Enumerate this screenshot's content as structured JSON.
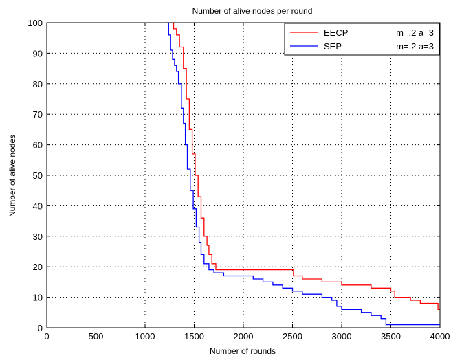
{
  "chart_data": {
    "type": "line",
    "title": "Number of alive nodes per round",
    "xlabel": "Number of rounds",
    "ylabel": "Number of alive nodes",
    "xlim": [
      0,
      4000
    ],
    "ylim": [
      0,
      100
    ],
    "xticks": [
      0,
      500,
      1000,
      1500,
      2000,
      2500,
      3000,
      3500,
      4000
    ],
    "yticks": [
      0,
      10,
      20,
      30,
      40,
      50,
      60,
      70,
      80,
      90,
      100
    ],
    "grid": true,
    "legend_position": "top-right",
    "series": [
      {
        "name": "EECP",
        "legend_note": "m=.2 a=3",
        "color": "#ff0000",
        "x": [
          1260,
          1290,
          1320,
          1350,
          1390,
          1420,
          1450,
          1480,
          1510,
          1540,
          1570,
          1600,
          1630,
          1650,
          1680,
          1720,
          1760,
          1800,
          2000,
          2200,
          2490,
          2510,
          2600,
          2700,
          2800,
          2900,
          3000,
          3100,
          3200,
          3300,
          3400,
          3500,
          3540,
          3600,
          3700,
          3800,
          3900,
          3980,
          4000
        ],
        "y": [
          100,
          98,
          96,
          92,
          85,
          75,
          65,
          57,
          50,
          43,
          36,
          30,
          27,
          24,
          21,
          19,
          19,
          19,
          19,
          19,
          19,
          17,
          16,
          16,
          15,
          15,
          14,
          14,
          14,
          13,
          13,
          12,
          10,
          10,
          9,
          8,
          8,
          6,
          6
        ]
      },
      {
        "name": "SEP",
        "legend_note": "m=.2 a=3",
        "color": "#0000ff",
        "x": [
          1220,
          1240,
          1260,
          1280,
          1300,
          1320,
          1340,
          1370,
          1390,
          1410,
          1430,
          1460,
          1490,
          1520,
          1550,
          1570,
          1600,
          1650,
          1700,
          1800,
          2000,
          2100,
          2200,
          2300,
          2400,
          2500,
          2600,
          2700,
          2800,
          2900,
          2950,
          3000,
          3100,
          3200,
          3300,
          3400,
          3450,
          3500,
          3600,
          3700,
          3800,
          3900,
          4000
        ],
        "y": [
          100,
          96,
          91,
          88,
          86,
          84,
          80,
          72,
          67,
          60,
          52,
          45,
          39,
          33,
          28,
          24,
          21,
          19,
          18,
          17,
          17,
          16,
          15,
          14,
          13,
          12,
          11,
          11,
          10,
          9,
          7,
          6,
          6,
          5,
          4,
          3,
          1,
          1,
          1,
          1,
          1,
          1,
          1
        ]
      }
    ]
  }
}
